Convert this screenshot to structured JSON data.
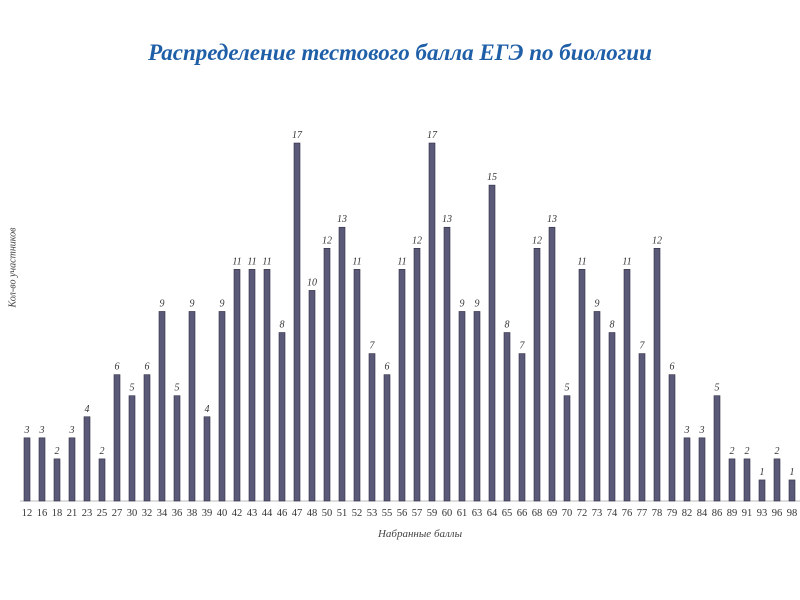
{
  "chart_data": {
    "type": "bar",
    "title": "Распределение тестового балла ЕГЭ по биологии",
    "xlabel": "Набранные баллы",
    "ylabel": "Кол-во участников",
    "categories": [
      "12",
      "16",
      "18",
      "21",
      "23",
      "25",
      "27",
      "30",
      "32",
      "34",
      "36",
      "38",
      "39",
      "40",
      "42",
      "43",
      "44",
      "46",
      "47",
      "48",
      "50",
      "51",
      "52",
      "53",
      "55",
      "56",
      "57",
      "59",
      "60",
      "61",
      "63",
      "64",
      "65",
      "66",
      "68",
      "69",
      "70",
      "72",
      "73",
      "74",
      "76",
      "77",
      "78",
      "79",
      "82",
      "84",
      "86",
      "89",
      "91",
      "93",
      "96",
      "98"
    ],
    "values": [
      3,
      3,
      2,
      3,
      4,
      2,
      6,
      5,
      6,
      9,
      5,
      9,
      4,
      9,
      11,
      11,
      11,
      8,
      17,
      10,
      12,
      13,
      11,
      7,
      6,
      11,
      12,
      17,
      13,
      9,
      9,
      15,
      8,
      7,
      12,
      13,
      5,
      11,
      9,
      8,
      11,
      7,
      12,
      6,
      3,
      3,
      5,
      2,
      2,
      1,
      2,
      1
    ],
    "ylim": [
      0,
      17
    ],
    "grid": false,
    "data_labels": true,
    "colors": {
      "bar": "#5a5a78",
      "bar_edge": "#2e2e44",
      "title": "#1f5fa8"
    }
  }
}
